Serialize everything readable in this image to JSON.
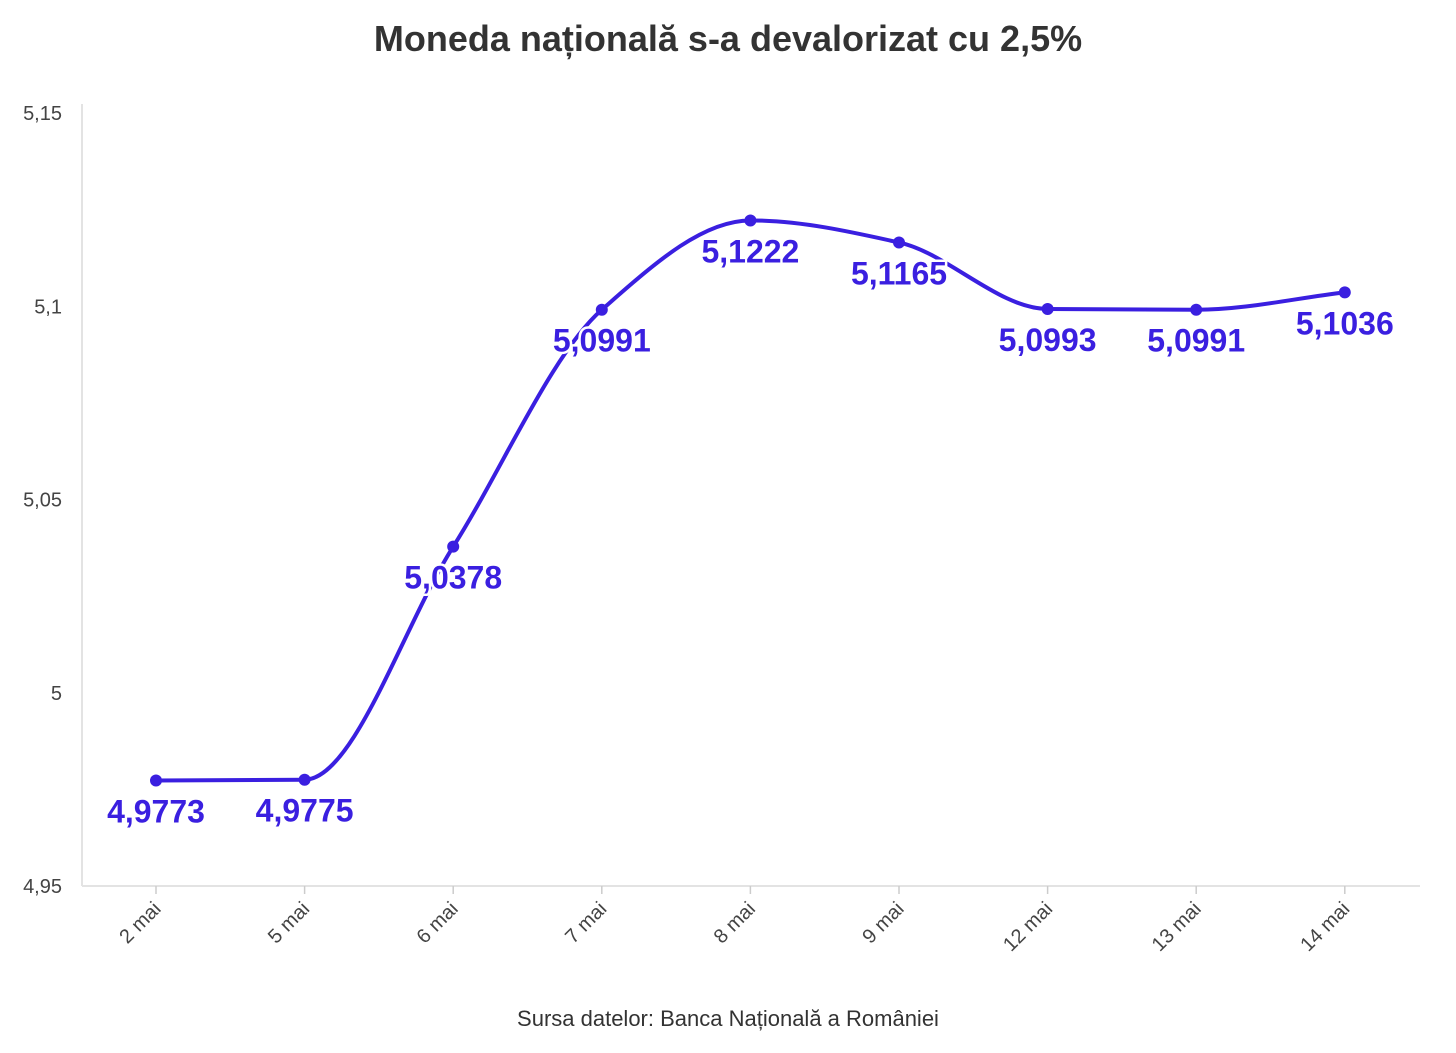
{
  "title": "Moneda națională s-a devalorizat cu 2,5%",
  "source": "Sursa datelor: Banca Națională a României",
  "chart_data": {
    "type": "line",
    "title": "Moneda națională s-a devalorizat cu 2,5%",
    "xlabel": "",
    "ylabel": "",
    "categories": [
      "2 mai",
      "5 mai",
      "6 mai",
      "7 mai",
      "8 mai",
      "9 mai",
      "12 mai",
      "13 mai",
      "14 mai"
    ],
    "values": [
      4.9773,
      4.9775,
      5.0378,
      5.0991,
      5.1222,
      5.1165,
      5.0993,
      5.0991,
      5.1036
    ],
    "data_labels": [
      "4,9773",
      "4,9775",
      "5,0378",
      "5,0991",
      "5,1222",
      "5,1165",
      "5,0993",
      "5,0991",
      "5,1036"
    ],
    "ylim": [
      4.95,
      5.15
    ],
    "yticks": [
      4.95,
      5,
      5.05,
      5.1,
      5.15
    ],
    "ytick_labels": [
      "4,95",
      "5",
      "5,05",
      "5,1",
      "5,15"
    ],
    "grid": false,
    "smooth": true,
    "color": "#3a1fe0"
  }
}
